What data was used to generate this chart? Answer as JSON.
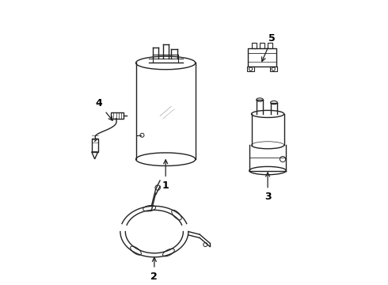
{
  "background_color": "#ffffff",
  "line_color": "#222222",
  "label_color": "#111111",
  "figsize": [
    4.9,
    3.6
  ],
  "dpi": 100
}
